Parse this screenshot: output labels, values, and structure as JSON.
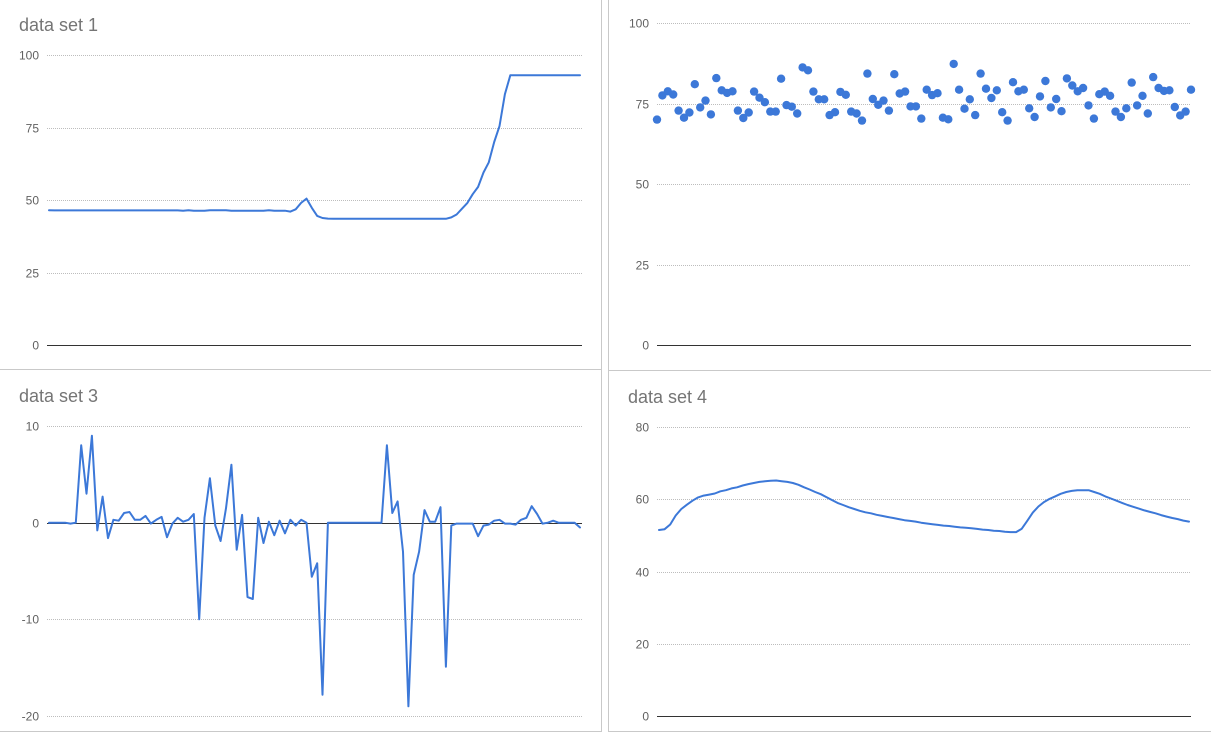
{
  "chart_data": [
    {
      "type": "line",
      "title": "data set 1",
      "ylim": [
        0,
        100
      ],
      "yticks": [
        0,
        25,
        50,
        75,
        100
      ],
      "grid": true,
      "color": "#3c78d8",
      "series": [
        {
          "values": [
            46.5,
            46.4,
            46.4,
            46.4,
            46.4,
            46.4,
            46.4,
            46.4,
            46.4,
            46.4,
            46.4,
            46.4,
            46.4,
            46.4,
            46.4,
            46.4,
            46.4,
            46.4,
            46.4,
            46.4,
            46.4,
            46.4,
            46.4,
            46.4,
            46.4,
            46.3,
            46.5,
            46.3,
            46.3,
            46.3,
            46.5,
            46.5,
            46.5,
            46.5,
            46.3,
            46.3,
            46.3,
            46.3,
            46.3,
            46.3,
            46.3,
            46.5,
            46.3,
            46.3,
            46.3,
            46.0,
            46.8,
            49.0,
            50.5,
            47.3,
            44.5,
            43.8,
            43.6,
            43.5,
            43.5,
            43.5,
            43.5,
            43.5,
            43.5,
            43.5,
            43.5,
            43.5,
            43.5,
            43.5,
            43.5,
            43.5,
            43.5,
            43.5,
            43.5,
            43.5,
            43.5,
            43.5,
            43.5,
            43.5,
            43.5,
            44.0,
            45.0,
            47.0,
            49.0,
            52.0,
            54.5,
            59.5,
            63.0,
            70.0,
            75.5,
            86.5,
            93.0,
            93.0,
            93.0,
            93.0,
            93.0,
            93.0,
            93.0,
            93.0,
            93.0,
            93.0,
            93.0,
            93.0,
            93.0,
            93.0
          ]
        }
      ]
    },
    {
      "type": "scatter",
      "title": "",
      "ylim": [
        0,
        100
      ],
      "yticks": [
        0,
        25,
        50,
        75,
        100
      ],
      "grid": true,
      "color": "#3c78d8",
      "series": [
        {
          "values": [
            70.0,
            77.5,
            78.8,
            77.8,
            72.8,
            70.6,
            72.2,
            81.0,
            73.8,
            75.9,
            71.6,
            82.9,
            79.1,
            78.3,
            78.8,
            72.8,
            70.5,
            72.2,
            78.7,
            76.8,
            75.4,
            72.5,
            72.5,
            82.7,
            74.5,
            74.0,
            71.9,
            86.2,
            85.3,
            78.7,
            76.3,
            76.3,
            71.4,
            72.3,
            78.6,
            77.7,
            72.5,
            71.9,
            69.7,
            84.3,
            76.4,
            74.6,
            75.9,
            72.8,
            84.1,
            78.1,
            78.7,
            74.1,
            74.1,
            70.3,
            79.3,
            77.6,
            78.2,
            70.6,
            70.1,
            87.3,
            79.3,
            73.4,
            76.3,
            71.4,
            84.3,
            79.6,
            76.7,
            79.1,
            72.3,
            69.7,
            81.6,
            78.8,
            79.3,
            73.5,
            70.8,
            77.2,
            82.0,
            73.8,
            76.4,
            72.6,
            82.8,
            80.6,
            78.8,
            79.8,
            74.4,
            70.3,
            77.9,
            78.7,
            77.4,
            72.5,
            70.8,
            73.5,
            81.5,
            74.4,
            77.4,
            71.9,
            83.2,
            79.8,
            78.9,
            79.1,
            73.9,
            71.3,
            72.5,
            79.3
          ]
        }
      ]
    },
    {
      "type": "line",
      "title": "data set 3",
      "ylim": [
        -20,
        10
      ],
      "yticks": [
        -20,
        -10,
        0,
        10
      ],
      "grid": true,
      "color": "#3c78d8",
      "series": [
        {
          "values": [
            0,
            0,
            0,
            0,
            -0.1,
            0,
            8,
            3,
            9,
            -0.8,
            2.7,
            -1.6,
            0.3,
            0.2,
            1,
            1.1,
            0.3,
            0.3,
            0.7,
            -0.1,
            0.3,
            0.6,
            -1.5,
            -0.1,
            0.5,
            0.1,
            0.3,
            0.9,
            -10,
            0.5,
            4.6,
            -0.3,
            -1.9,
            1.5,
            6,
            -2.8,
            0.8,
            -7.7,
            -7.9,
            0.5,
            -2.1,
            0.1,
            -1.3,
            0.2,
            -1.1,
            0.3,
            -0.3,
            0.3,
            0,
            -5.6,
            -4.2,
            -17.8,
            0,
            0,
            0,
            0,
            0,
            0,
            0,
            0,
            0,
            0,
            0,
            8,
            1,
            2.2,
            -3,
            -19,
            -5.4,
            -3,
            1.3,
            0.1,
            0.1,
            1.6,
            -14.9,
            -0.3,
            -0.1,
            -0.1,
            -0.1,
            -0.1,
            -1.4,
            -0.3,
            -0.2,
            0.2,
            0.3,
            -0.1,
            -0.1,
            -0.2,
            0.3,
            0.5,
            1.7,
            0.9,
            -0.1,
            0,
            0.2,
            0,
            0,
            0,
            0,
            -0.5
          ]
        }
      ]
    },
    {
      "type": "line",
      "title": "data set 4",
      "ylim": [
        0,
        80
      ],
      "yticks": [
        0,
        20,
        40,
        60,
        80
      ],
      "grid": true,
      "color": "#3c78d8",
      "series": [
        {
          "values": [
            51.5,
            51.7,
            53.0,
            55.5,
            57.3,
            58.5,
            59.6,
            60.5,
            61.0,
            61.3,
            61.6,
            62.2,
            62.5,
            63.0,
            63.3,
            63.8,
            64.2,
            64.5,
            64.8,
            65.0,
            65.1,
            65.2,
            65.0,
            64.8,
            64.5,
            64.0,
            63.3,
            62.7,
            62.0,
            61.4,
            60.6,
            59.8,
            59.0,
            58.4,
            57.8,
            57.3,
            56.8,
            56.4,
            56.1,
            55.7,
            55.4,
            55.1,
            54.8,
            54.5,
            54.2,
            54.0,
            53.8,
            53.5,
            53.3,
            53.1,
            52.9,
            52.7,
            52.6,
            52.4,
            52.2,
            52.1,
            52.0,
            51.8,
            51.6,
            51.5,
            51.3,
            51.2,
            51.0,
            50.9,
            50.9,
            51.8,
            54.0,
            56.3,
            58.0,
            59.2,
            60.1,
            60.8,
            61.5,
            62.0,
            62.3,
            62.5,
            62.5,
            62.5,
            62.0,
            61.5,
            60.8,
            60.2,
            59.6,
            59.0,
            58.4,
            57.9,
            57.4,
            56.9,
            56.5,
            56.1,
            55.6,
            55.2,
            54.8,
            54.5,
            54.1,
            53.8
          ]
        }
      ]
    }
  ]
}
